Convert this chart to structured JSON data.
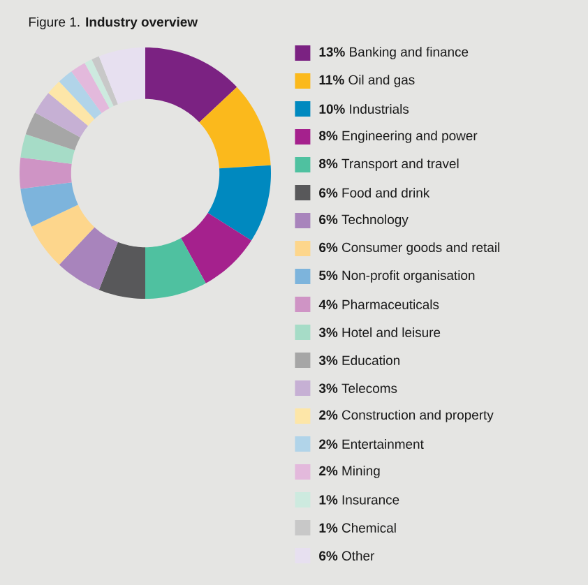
{
  "chart_data": {
    "type": "donut",
    "title": "Figure 1. **Industry overview**",
    "legend": "right",
    "categories": [
      "**13%** Banking and finance",
      "**11%** Oil and gas",
      "**10%** Industrials",
      "**8%** Engineering and power",
      "**8%** Transport and travel",
      "**6%** Food and drink",
      "**6%** Technology",
      "**6%** Consumer goods and retail",
      "**5%** Non-profit organisation",
      "**4%** Pharmaceuticals",
      "**3%** Hotel and leisure",
      "**3%** Education",
      "**3%** Telecoms",
      "**2%** Construction and property",
      "**2%** Entertainment",
      "**2%** Mining",
      "**1%** Insurance",
      "**1%** Chemical",
      "**6%** Other"
    ],
    "values": [
      13,
      11,
      10,
      8,
      8,
      6,
      6,
      6,
      5,
      4,
      3,
      3,
      3,
      2,
      2,
      2,
      1,
      1,
      6
    ],
    "colors": [
      "#7b2282",
      "#fbb91c",
      "#0089bf",
      "#a5218d",
      "#4fc1a0",
      "#58585a",
      "#a884bc",
      "#fdd68c",
      "#7db4dc",
      "#cf94c5",
      "#a6dcc7",
      "#a6a6a6",
      "#c6b0d4",
      "#fde6a8",
      "#b1d4e9",
      "#e3b9dc",
      "#cdeadf",
      "#c8c8c8",
      "#e7e0f0"
    ]
  }
}
